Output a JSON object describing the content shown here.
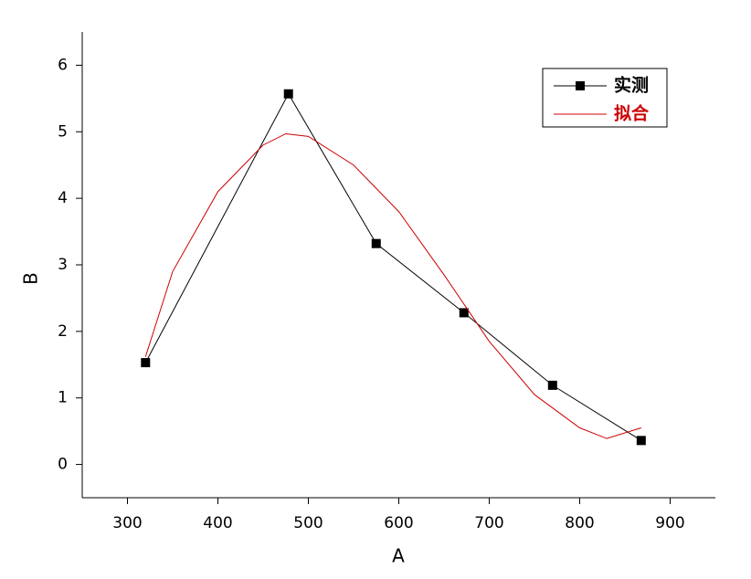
{
  "chart_data": {
    "type": "line",
    "x_label": "A",
    "y_label": "B",
    "xlim": [
      250,
      950
    ],
    "xticks": [
      300,
      400,
      500,
      600,
      700,
      800,
      900
    ],
    "ylim": [
      -0.5,
      6.5
    ],
    "yticks": [
      0,
      1,
      2,
      3,
      4,
      5,
      6
    ],
    "legend": "top-right",
    "series": [
      {
        "name": "实测",
        "color": "#000000",
        "marker": "square",
        "x": [
          320,
          478,
          575,
          672,
          770,
          868
        ],
        "values": [
          1.53,
          5.57,
          3.32,
          2.28,
          1.19,
          0.36
        ]
      },
      {
        "name": "拟合",
        "color": "#cc0000",
        "x": [
          320,
          350,
          400,
          450,
          475,
          500,
          550,
          600,
          650,
          700,
          750,
          800,
          830,
          868
        ],
        "values": [
          1.62,
          2.9,
          4.1,
          4.8,
          4.97,
          4.93,
          4.5,
          3.8,
          2.85,
          1.85,
          1.05,
          0.55,
          0.39,
          0.55
        ]
      }
    ]
  }
}
